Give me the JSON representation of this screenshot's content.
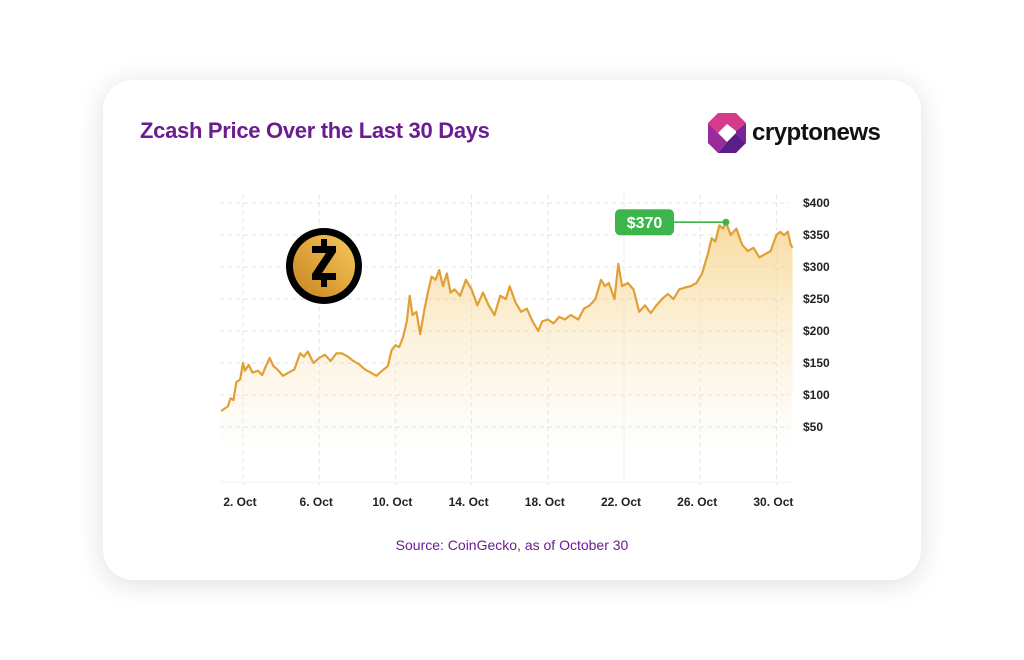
{
  "header": {
    "title": "Zcash Price Over the Last 30 Days",
    "logo_text": "cryptonews"
  },
  "footer": {
    "source": "Source: CoinGecko, as of October 30"
  },
  "colors": {
    "title": "#6b1d8f",
    "line": "#e0a035",
    "callout": "#3cb54a"
  },
  "chart_data": {
    "type": "area",
    "title": "Zcash Price Over the Last 30 Days",
    "xlabel": "",
    "ylabel": "",
    "x_ticks": [
      {
        "day": 2,
        "label": "2. Oct"
      },
      {
        "day": 6,
        "label": "6. Oct"
      },
      {
        "day": 10,
        "label": "10. Oct"
      },
      {
        "day": 14,
        "label": "14. Oct"
      },
      {
        "day": 18,
        "label": "18. Oct"
      },
      {
        "day": 22,
        "label": "22. Oct"
      },
      {
        "day": 26,
        "label": "26. Oct"
      },
      {
        "day": 30,
        "label": "30. Oct"
      }
    ],
    "y_ticks": [
      {
        "v": 400,
        "label": "$400"
      },
      {
        "v": 350,
        "label": "$350"
      },
      {
        "v": 300,
        "label": "$300"
      },
      {
        "v": 250,
        "label": "$250"
      },
      {
        "v": 200,
        "label": "$200"
      },
      {
        "v": 150,
        "label": "$150"
      },
      {
        "v": 100,
        "label": "$100"
      },
      {
        "v": 50,
        "label": "$50"
      }
    ],
    "xlim": [
      0.85,
      30.85
    ],
    "ylim": [
      -36,
      400
    ],
    "grid": true,
    "annotation": {
      "day": 27.35,
      "value": 370,
      "label": "$370"
    },
    "series": [
      {
        "name": "ZEC price (USD)",
        "points": [
          [
            0.85,
            75
          ],
          [
            1.0,
            78
          ],
          [
            1.2,
            82
          ],
          [
            1.35,
            95
          ],
          [
            1.5,
            92
          ],
          [
            1.65,
            120
          ],
          [
            1.85,
            124
          ],
          [
            2.0,
            150
          ],
          [
            2.1,
            138
          ],
          [
            2.3,
            147
          ],
          [
            2.5,
            135
          ],
          [
            2.8,
            138
          ],
          [
            3.0,
            131
          ],
          [
            3.2,
            145
          ],
          [
            3.4,
            158
          ],
          [
            3.6,
            145
          ],
          [
            3.8,
            140
          ],
          [
            4.1,
            130
          ],
          [
            4.4,
            135
          ],
          [
            4.7,
            140
          ],
          [
            5.0,
            165
          ],
          [
            5.2,
            160
          ],
          [
            5.4,
            168
          ],
          [
            5.7,
            150
          ],
          [
            6.0,
            158
          ],
          [
            6.3,
            163
          ],
          [
            6.6,
            153
          ],
          [
            6.9,
            165
          ],
          [
            7.2,
            165
          ],
          [
            7.5,
            160
          ],
          [
            7.8,
            153
          ],
          [
            8.1,
            148
          ],
          [
            8.4,
            140
          ],
          [
            8.7,
            135
          ],
          [
            9.0,
            130
          ],
          [
            9.3,
            138
          ],
          [
            9.6,
            145
          ],
          [
            9.8,
            170
          ],
          [
            10.0,
            178
          ],
          [
            10.2,
            175
          ],
          [
            10.4,
            190
          ],
          [
            10.6,
            215
          ],
          [
            10.75,
            255
          ],
          [
            10.9,
            225
          ],
          [
            11.1,
            230
          ],
          [
            11.3,
            195
          ],
          [
            11.5,
            230
          ],
          [
            11.7,
            260
          ],
          [
            11.9,
            285
          ],
          [
            12.1,
            280
          ],
          [
            12.3,
            295
          ],
          [
            12.5,
            270
          ],
          [
            12.7,
            290
          ],
          [
            12.9,
            260
          ],
          [
            13.1,
            265
          ],
          [
            13.4,
            255
          ],
          [
            13.7,
            280
          ],
          [
            14.0,
            265
          ],
          [
            14.3,
            240
          ],
          [
            14.6,
            260
          ],
          [
            14.9,
            240
          ],
          [
            15.2,
            225
          ],
          [
            15.5,
            255
          ],
          [
            15.8,
            250
          ],
          [
            16.0,
            270
          ],
          [
            16.3,
            245
          ],
          [
            16.6,
            230
          ],
          [
            16.9,
            235
          ],
          [
            17.2,
            215
          ],
          [
            17.5,
            200
          ],
          [
            17.7,
            215
          ],
          [
            18.0,
            218
          ],
          [
            18.3,
            212
          ],
          [
            18.6,
            222
          ],
          [
            18.9,
            218
          ],
          [
            19.2,
            225
          ],
          [
            19.6,
            218
          ],
          [
            19.9,
            235
          ],
          [
            20.2,
            240
          ],
          [
            20.5,
            250
          ],
          [
            20.8,
            280
          ],
          [
            21.0,
            270
          ],
          [
            21.2,
            275
          ],
          [
            21.5,
            250
          ],
          [
            21.7,
            305
          ],
          [
            21.9,
            270
          ],
          [
            22.2,
            275
          ],
          [
            22.5,
            265
          ],
          [
            22.8,
            230
          ],
          [
            23.1,
            240
          ],
          [
            23.4,
            228
          ],
          [
            23.7,
            240
          ],
          [
            24.0,
            250
          ],
          [
            24.3,
            258
          ],
          [
            24.6,
            250
          ],
          [
            24.9,
            265
          ],
          [
            25.2,
            268
          ],
          [
            25.5,
            270
          ],
          [
            25.8,
            275
          ],
          [
            26.1,
            290
          ],
          [
            26.4,
            320
          ],
          [
            26.6,
            345
          ],
          [
            26.8,
            340
          ],
          [
            27.0,
            365
          ],
          [
            27.2,
            360
          ],
          [
            27.35,
            370
          ],
          [
            27.6,
            350
          ],
          [
            27.9,
            360
          ],
          [
            28.2,
            335
          ],
          [
            28.5,
            325
          ],
          [
            28.8,
            330
          ],
          [
            29.1,
            315
          ],
          [
            29.4,
            320
          ],
          [
            29.7,
            325
          ],
          [
            30.0,
            350
          ],
          [
            30.2,
            355
          ],
          [
            30.4,
            350
          ],
          [
            30.6,
            355
          ],
          [
            30.75,
            335
          ],
          [
            30.85,
            330
          ]
        ]
      }
    ]
  }
}
